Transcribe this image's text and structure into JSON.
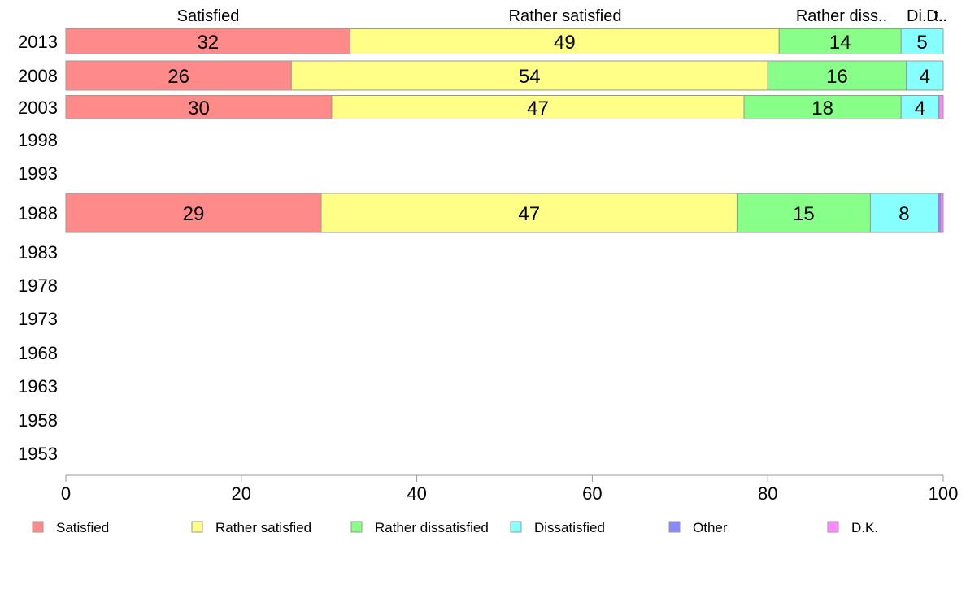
{
  "chart_data": {
    "type": "bar",
    "orientation": "horizontal",
    "stacked": true,
    "categories": [
      "2013",
      "2008",
      "2003",
      "1998",
      "1993",
      "1988",
      "1983",
      "1978",
      "1973",
      "1968",
      "1963",
      "1958",
      "1953"
    ],
    "series": [
      {
        "name": "Satisfied",
        "color": "#ff8a8a",
        "values": [
          32.4,
          25.7,
          30.3,
          null,
          null,
          29.1,
          null,
          null,
          null,
          null,
          null,
          null,
          null
        ]
      },
      {
        "name": "Rather satisfied",
        "color": "#ffff88",
        "values": [
          48.9,
          54.3,
          47.0,
          null,
          null,
          47.4,
          null,
          null,
          null,
          null,
          null,
          null,
          null
        ]
      },
      {
        "name": "Rather dissatisfied",
        "color": "#88ff88",
        "values": [
          13.9,
          15.8,
          17.9,
          null,
          null,
          15.2,
          null,
          null,
          null,
          null,
          null,
          null,
          null
        ]
      },
      {
        "name": "Dissatisfied",
        "color": "#88ffff",
        "values": [
          4.8,
          4.2,
          4.3,
          null,
          null,
          7.7,
          null,
          null,
          null,
          null,
          null,
          null,
          null
        ]
      },
      {
        "name": "Other",
        "color": "#8888ff",
        "values": [
          0,
          0,
          0.05,
          null,
          null,
          0.3,
          null,
          null,
          null,
          null,
          null,
          null,
          null
        ]
      },
      {
        "name": "D.K.",
        "color": "#ff88ff",
        "values": [
          0,
          0,
          0.45,
          null,
          null,
          0.3,
          null,
          null,
          null,
          null,
          null,
          null,
          null
        ]
      }
    ],
    "xlim": [
      0,
      100
    ],
    "xticks": [
      0,
      20,
      40,
      60,
      80,
      100
    ],
    "top_labels": [
      "Satisfied",
      "Rather satisfied",
      "Rather diss..",
      "Di..",
      "D..",
      "t.."
    ],
    "legend_position": "bottom",
    "grid": false
  }
}
